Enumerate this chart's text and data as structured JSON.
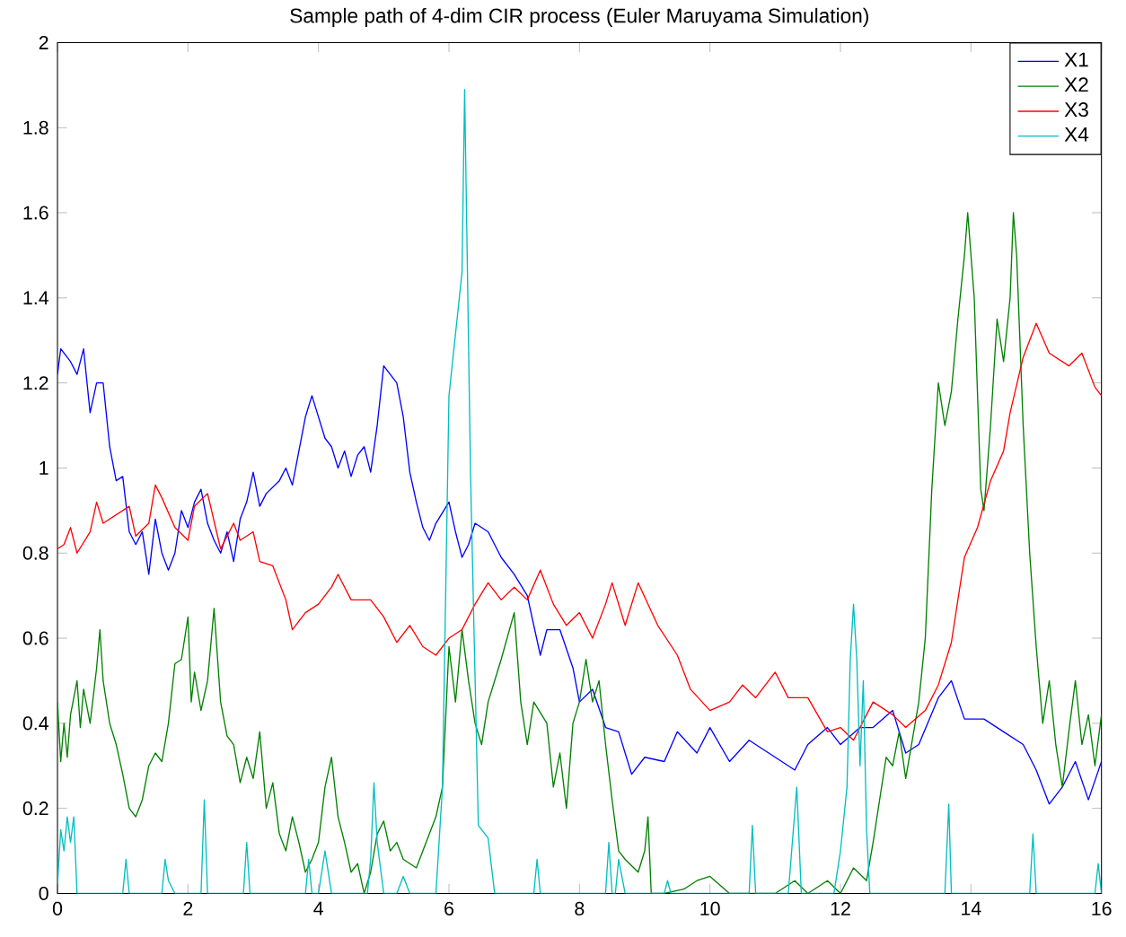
{
  "chart_data": {
    "type": "line",
    "title": "Sample path of 4-dim CIR process (Euler Maruyama Simulation)",
    "xlim": [
      0,
      16
    ],
    "xticks": [
      0,
      2,
      4,
      6,
      8,
      10,
      12,
      14,
      16
    ],
    "ylim": [
      0,
      2
    ],
    "yticks": [
      0,
      0.2,
      0.4,
      0.6,
      0.8,
      1,
      1.2,
      1.4,
      1.6,
      1.8,
      2
    ],
    "grid": false,
    "legend": "top right",
    "marker": "none",
    "line_style": "solid",
    "series": [
      {
        "name": "X1",
        "color": "#0000ff",
        "x": [
          0,
          0.05,
          0.2,
          0.3,
          0.4,
          0.5,
          0.6,
          0.7,
          0.8,
          0.9,
          1.0,
          1.1,
          1.2,
          1.3,
          1.4,
          1.5,
          1.6,
          1.7,
          1.8,
          1.9,
          2.0,
          2.1,
          2.2,
          2.3,
          2.4,
          2.5,
          2.6,
          2.7,
          2.8,
          2.9,
          3.0,
          3.1,
          3.2,
          3.4,
          3.5,
          3.6,
          3.7,
          3.8,
          3.9,
          4.0,
          4.1,
          4.2,
          4.3,
          4.4,
          4.5,
          4.6,
          4.7,
          4.8,
          4.9,
          5.0,
          5.2,
          5.3,
          5.4,
          5.5,
          5.6,
          5.7,
          5.8,
          6.0,
          6.1,
          6.2,
          6.3,
          6.4,
          6.5,
          6.6,
          6.8,
          7.0,
          7.2,
          7.4,
          7.5,
          7.7,
          7.9,
          8.0,
          8.2,
          8.4,
          8.6,
          8.8,
          9.0,
          9.3,
          9.5,
          9.8,
          10.0,
          10.3,
          10.6,
          11.0,
          11.3,
          11.5,
          11.8,
          12.0,
          12.3,
          12.5,
          12.8,
          13.0,
          13.2,
          13.5,
          13.7,
          13.9,
          14.2,
          14.5,
          14.8,
          15.0,
          15.2,
          15.4,
          15.6,
          15.8,
          16.0
        ],
        "values": [
          1.22,
          1.28,
          1.25,
          1.22,
          1.28,
          1.13,
          1.2,
          1.2,
          1.05,
          0.97,
          0.98,
          0.85,
          0.82,
          0.85,
          0.75,
          0.88,
          0.8,
          0.76,
          0.8,
          0.9,
          0.86,
          0.92,
          0.95,
          0.87,
          0.83,
          0.8,
          0.85,
          0.78,
          0.88,
          0.92,
          0.99,
          0.91,
          0.94,
          0.97,
          1.0,
          0.96,
          1.04,
          1.12,
          1.17,
          1.12,
          1.07,
          1.05,
          1.0,
          1.04,
          0.98,
          1.03,
          1.05,
          0.99,
          1.1,
          1.24,
          1.2,
          1.12,
          0.99,
          0.92,
          0.86,
          0.83,
          0.87,
          0.92,
          0.85,
          0.79,
          0.82,
          0.87,
          0.86,
          0.85,
          0.79,
          0.75,
          0.7,
          0.56,
          0.62,
          0.62,
          0.53,
          0.45,
          0.48,
          0.39,
          0.38,
          0.28,
          0.32,
          0.31,
          0.38,
          0.33,
          0.39,
          0.31,
          0.36,
          0.32,
          0.29,
          0.35,
          0.39,
          0.35,
          0.39,
          0.39,
          0.43,
          0.33,
          0.35,
          0.46,
          0.5,
          0.41,
          0.41,
          0.38,
          0.35,
          0.29,
          0.21,
          0.25,
          0.31,
          0.22,
          0.31
        ]
      },
      {
        "name": "X2",
        "color": "#008000",
        "x": [
          0,
          0.05,
          0.1,
          0.15,
          0.2,
          0.3,
          0.35,
          0.4,
          0.5,
          0.6,
          0.65,
          0.7,
          0.8,
          0.9,
          1.0,
          1.1,
          1.2,
          1.3,
          1.4,
          1.5,
          1.6,
          1.7,
          1.8,
          1.9,
          2.0,
          2.05,
          2.1,
          2.2,
          2.3,
          2.4,
          2.5,
          2.6,
          2.7,
          2.8,
          2.9,
          3.0,
          3.1,
          3.2,
          3.3,
          3.4,
          3.5,
          3.6,
          3.7,
          3.8,
          3.9,
          4.0,
          4.1,
          4.2,
          4.3,
          4.4,
          4.5,
          4.6,
          4.7,
          4.8,
          4.9,
          5.0,
          5.1,
          5.2,
          5.3,
          5.5,
          5.6,
          5.8,
          5.9,
          6.0,
          6.1,
          6.2,
          6.3,
          6.4,
          6.5,
          6.6,
          6.8,
          7.0,
          7.1,
          7.2,
          7.3,
          7.5,
          7.6,
          7.7,
          7.8,
          7.9,
          8.0,
          8.1,
          8.2,
          8.3,
          8.4,
          8.5,
          8.6,
          8.7,
          8.9,
          9.0,
          9.05,
          9.1,
          9.3,
          9.6,
          9.8,
          10.0,
          10.3,
          10.6,
          11.0,
          11.3,
          11.5,
          11.8,
          12.0,
          12.2,
          12.4,
          12.5,
          12.6,
          12.7,
          12.8,
          12.9,
          13.0,
          13.2,
          13.3,
          13.4,
          13.5,
          13.6,
          13.7,
          13.8,
          13.9,
          13.95,
          14.05,
          14.15,
          14.2,
          14.3,
          14.4,
          14.5,
          14.6,
          14.65,
          14.7,
          14.8,
          14.9,
          15.0,
          15.1,
          15.2,
          15.3,
          15.4,
          15.5,
          15.6,
          15.7,
          15.8,
          15.9,
          16.0
        ],
        "values": [
          0.45,
          0.31,
          0.4,
          0.32,
          0.42,
          0.5,
          0.39,
          0.48,
          0.4,
          0.53,
          0.62,
          0.5,
          0.4,
          0.35,
          0.28,
          0.2,
          0.18,
          0.22,
          0.3,
          0.33,
          0.31,
          0.4,
          0.54,
          0.55,
          0.65,
          0.45,
          0.52,
          0.43,
          0.5,
          0.67,
          0.45,
          0.37,
          0.35,
          0.26,
          0.32,
          0.27,
          0.38,
          0.2,
          0.26,
          0.14,
          0.1,
          0.18,
          0.12,
          0.05,
          0.08,
          0.12,
          0.25,
          0.32,
          0.18,
          0.12,
          0.05,
          0.07,
          0.0,
          0.05,
          0.14,
          0.17,
          0.1,
          0.12,
          0.08,
          0.06,
          0.1,
          0.18,
          0.25,
          0.58,
          0.45,
          0.62,
          0.5,
          0.4,
          0.35,
          0.45,
          0.55,
          0.66,
          0.45,
          0.35,
          0.45,
          0.4,
          0.25,
          0.33,
          0.2,
          0.4,
          0.45,
          0.55,
          0.45,
          0.5,
          0.35,
          0.22,
          0.1,
          0.08,
          0.05,
          0.1,
          0.18,
          0.0,
          0.0,
          0.01,
          0.03,
          0.04,
          0.0,
          0.0,
          0.0,
          0.03,
          0.0,
          0.03,
          0.0,
          0.06,
          0.03,
          0.12,
          0.22,
          0.32,
          0.3,
          0.38,
          0.27,
          0.45,
          0.6,
          0.95,
          1.2,
          1.1,
          1.18,
          1.35,
          1.5,
          1.6,
          1.4,
          0.95,
          0.9,
          1.1,
          1.35,
          1.25,
          1.4,
          1.6,
          1.5,
          1.1,
          0.8,
          0.58,
          0.4,
          0.5,
          0.35,
          0.25,
          0.38,
          0.5,
          0.35,
          0.42,
          0.3,
          0.42
        ]
      },
      {
        "name": "X3",
        "color": "#ff0000",
        "x": [
          0,
          0.1,
          0.2,
          0.3,
          0.5,
          0.6,
          0.7,
          0.9,
          1.1,
          1.2,
          1.4,
          1.5,
          1.6,
          1.8,
          2.0,
          2.1,
          2.3,
          2.5,
          2.7,
          2.8,
          3.0,
          3.1,
          3.3,
          3.5,
          3.6,
          3.8,
          4.0,
          4.2,
          4.3,
          4.5,
          4.8,
          5.0,
          5.2,
          5.4,
          5.6,
          5.8,
          6.0,
          6.2,
          6.4,
          6.6,
          6.8,
          7.0,
          7.2,
          7.4,
          7.6,
          7.8,
          8.0,
          8.2,
          8.4,
          8.5,
          8.7,
          8.9,
          9.2,
          9.5,
          9.7,
          10.0,
          10.3,
          10.5,
          10.7,
          11.0,
          11.2,
          11.5,
          11.8,
          12.0,
          12.2,
          12.5,
          12.8,
          13.0,
          13.3,
          13.5,
          13.7,
          13.9,
          14.1,
          14.3,
          14.5,
          14.6,
          14.8,
          15.0,
          15.2,
          15.5,
          15.7,
          15.9,
          16.0
        ],
        "values": [
          0.81,
          0.82,
          0.86,
          0.8,
          0.85,
          0.92,
          0.87,
          0.89,
          0.91,
          0.84,
          0.87,
          0.96,
          0.93,
          0.86,
          0.83,
          0.91,
          0.94,
          0.81,
          0.87,
          0.83,
          0.85,
          0.78,
          0.77,
          0.69,
          0.62,
          0.66,
          0.68,
          0.72,
          0.75,
          0.69,
          0.69,
          0.65,
          0.59,
          0.63,
          0.58,
          0.56,
          0.6,
          0.62,
          0.68,
          0.73,
          0.69,
          0.72,
          0.69,
          0.76,
          0.68,
          0.63,
          0.66,
          0.6,
          0.68,
          0.73,
          0.63,
          0.73,
          0.63,
          0.56,
          0.48,
          0.43,
          0.45,
          0.49,
          0.46,
          0.52,
          0.46,
          0.46,
          0.38,
          0.39,
          0.36,
          0.45,
          0.42,
          0.39,
          0.43,
          0.49,
          0.59,
          0.79,
          0.86,
          0.97,
          1.04,
          1.13,
          1.26,
          1.34,
          1.27,
          1.24,
          1.27,
          1.19,
          1.17
        ]
      },
      {
        "name": "X4",
        "color": "#00bfbf",
        "x": [
          0,
          0.05,
          0.1,
          0.15,
          0.2,
          0.25,
          0.3,
          1.0,
          1.05,
          1.1,
          1.6,
          1.65,
          1.7,
          1.8,
          2.2,
          2.25,
          2.3,
          2.85,
          2.9,
          2.95,
          3.8,
          3.85,
          3.9,
          4.0,
          4.1,
          4.2,
          4.75,
          4.8,
          4.85,
          4.9,
          5.0,
          5.2,
          5.3,
          5.4,
          5.8,
          5.9,
          6.0,
          6.2,
          6.24,
          6.33,
          6.45,
          6.6,
          6.7,
          7.3,
          7.35,
          7.4,
          8.4,
          8.45,
          8.5,
          8.55,
          8.6,
          8.7,
          9.3,
          9.35,
          9.4,
          10.6,
          10.65,
          10.7,
          11.2,
          11.33,
          11.4,
          11.9,
          12.0,
          12.1,
          12.15,
          12.2,
          12.25,
          12.3,
          12.35,
          12.4,
          12.45,
          13.6,
          13.66,
          13.7,
          14.9,
          14.95,
          15.0,
          15.9,
          15.95,
          16.0
        ],
        "values": [
          0.02,
          0.15,
          0.1,
          0.18,
          0.12,
          0.18,
          0.0,
          0.0,
          0.08,
          0.0,
          0.0,
          0.08,
          0.03,
          0.0,
          0.0,
          0.22,
          0.0,
          0.0,
          0.12,
          0.0,
          0.0,
          0.08,
          0.0,
          0.0,
          0.1,
          0.0,
          0.0,
          0.08,
          0.26,
          0.12,
          0.0,
          0.0,
          0.04,
          0.0,
          0.0,
          0.25,
          1.17,
          1.46,
          1.89,
          0.99,
          0.16,
          0.13,
          0.0,
          0.0,
          0.08,
          0.0,
          0.0,
          0.12,
          0.0,
          0.0,
          0.08,
          0.0,
          0.0,
          0.03,
          0.0,
          0.0,
          0.16,
          0.0,
          0.0,
          0.25,
          0.0,
          0.0,
          0.1,
          0.25,
          0.55,
          0.68,
          0.55,
          0.3,
          0.5,
          0.15,
          0.0,
          0.0,
          0.21,
          0.0,
          0.0,
          0.14,
          0.0,
          0.0,
          0.07,
          0.0
        ]
      }
    ]
  }
}
